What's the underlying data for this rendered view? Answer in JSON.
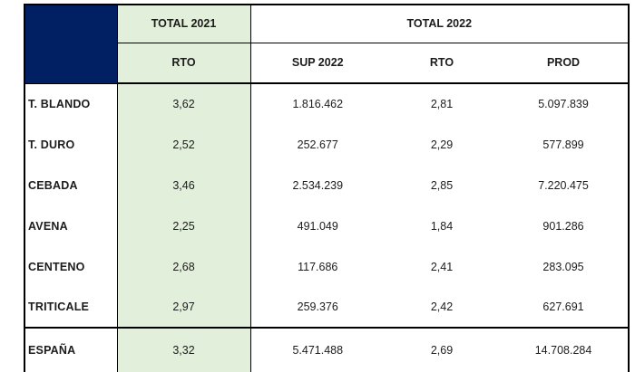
{
  "colors": {
    "corner_navy": "#002063",
    "green_column": "#e2efda",
    "border": "#000000",
    "text": "#1c1c1c"
  },
  "table": {
    "header1": {
      "total2021": "TOTAL 2021",
      "total2022": "TOTAL 2022"
    },
    "header2": {
      "rto2021": "RTO",
      "sup2022": "SUP 2022",
      "rto2022": "RTO",
      "prod": "PROD"
    },
    "rows": [
      {
        "label": "T. BLANDO",
        "rto2021": "3,62",
        "sup2022": "1.816.462",
        "rto2022": "2,81",
        "prod": "5.097.839"
      },
      {
        "label": "T. DURO",
        "rto2021": "2,52",
        "sup2022": "252.677",
        "rto2022": "2,29",
        "prod": "577.899"
      },
      {
        "label": "CEBADA",
        "rto2021": "3,46",
        "sup2022": "2.534.239",
        "rto2022": "2,85",
        "prod": "7.220.475"
      },
      {
        "label": "AVENA",
        "rto2021": "2,25",
        "sup2022": "491.049",
        "rto2022": "1,84",
        "prod": "901.286"
      },
      {
        "label": "CENTENO",
        "rto2021": "2,68",
        "sup2022": "117.686",
        "rto2022": "2,41",
        "prod": "283.095"
      },
      {
        "label": "TRITICALE",
        "rto2021": "2,97",
        "sup2022": "259.376",
        "rto2022": "2,42",
        "prod": "627.691"
      }
    ],
    "footer": {
      "label": "ESPAÑA",
      "rto2021": "3,32",
      "sup2022": "5.471.488",
      "rto2022": "2,69",
      "prod": "14.708.284"
    }
  }
}
